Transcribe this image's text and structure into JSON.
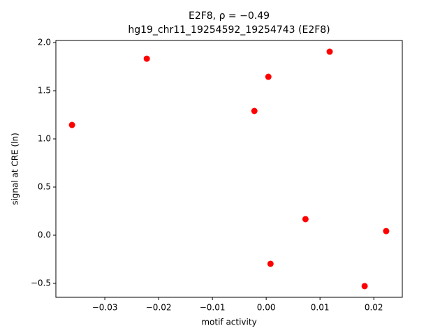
{
  "chart_data": {
    "type": "scatter",
    "title": "E2F8, ρ = −0.49",
    "subtitle": "hg19_chr11_19254592_19254743 (E2F8)",
    "x_label": "motif activity",
    "y_label": "signal at CRE (ln)",
    "color": "#ff0000",
    "x": [
      -0.0361,
      -0.0222,
      -0.0022,
      0.0004,
      0.0008,
      0.0073,
      0.0118,
      0.0183,
      0.0223
    ],
    "values": [
      1.145,
      1.833,
      1.29,
      1.645,
      -0.297,
      0.167,
      1.906,
      -0.529,
      0.043
    ],
    "xlim": [
      -0.0391,
      0.0253
    ],
    "ylim": [
      -0.645,
      2.022
    ],
    "xticks": [
      {
        "value": -0.03,
        "label": "−0.03"
      },
      {
        "value": -0.02,
        "label": "−0.02"
      },
      {
        "value": -0.01,
        "label": "−0.01"
      },
      {
        "value": 0,
        "label": "0.00"
      },
      {
        "value": 0.01,
        "label": "0.01"
      },
      {
        "value": 0.02,
        "label": "0.02"
      }
    ],
    "yticks": [
      {
        "value": -0.5,
        "label": "−0.5"
      },
      {
        "value": 0,
        "label": "0.0"
      },
      {
        "value": 0.5,
        "label": "0.5"
      },
      {
        "value": 1,
        "label": "1.0"
      },
      {
        "value": 1.5,
        "label": "1.5"
      },
      {
        "value": 2,
        "label": "2.0"
      }
    ]
  }
}
